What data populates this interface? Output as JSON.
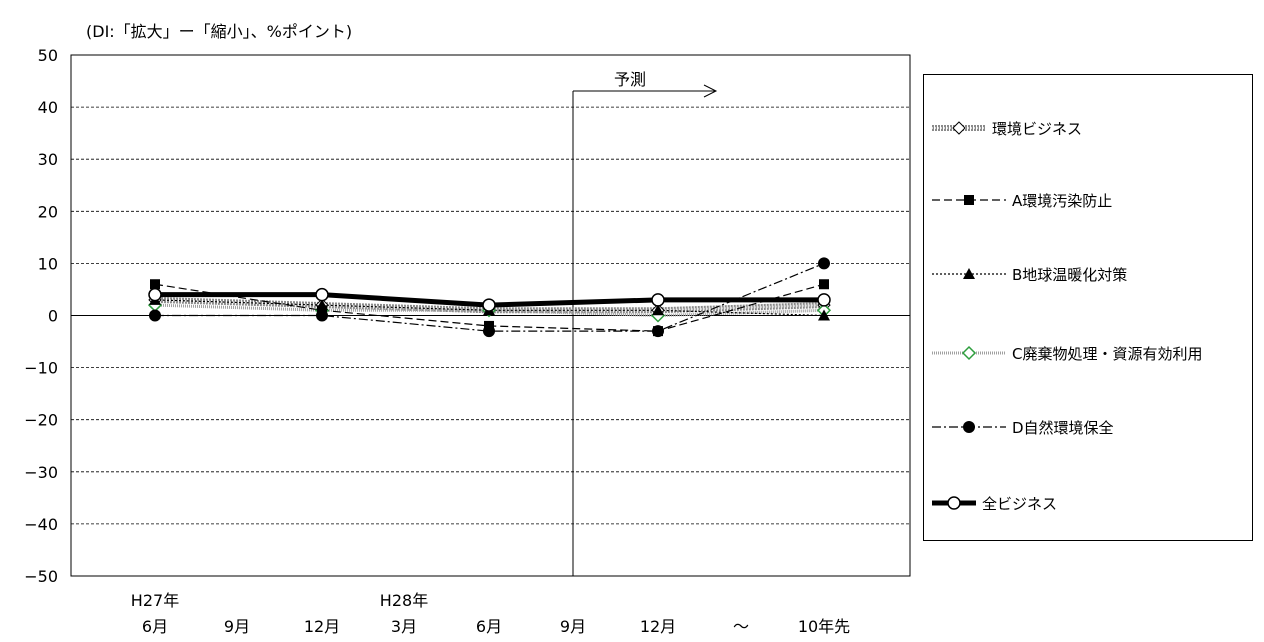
{
  "chart_data": {
    "type": "line",
    "unit_label": "(DI:「拡大」ー「縮小」、%ポイント)",
    "ylim": [
      -50,
      50
    ],
    "yticks": [
      50,
      40,
      30,
      20,
      10,
      0,
      -10,
      -20,
      -30,
      -40,
      -50
    ],
    "ytick_labels": [
      "50",
      "40",
      "30",
      "20",
      "10",
      "0",
      "−10",
      "−20",
      "−30",
      "−40",
      "−50"
    ],
    "x_months": [
      "6月",
      "9月",
      "12月",
      "3月",
      "6月",
      "9月",
      "12月",
      "〜",
      "10年先"
    ],
    "x_years": [
      {
        "label": "H27年",
        "index": 0
      },
      {
        "label": "H28年",
        "index": 3
      }
    ],
    "forecast_label": "予測",
    "forecast_start_index": 5,
    "grid": true,
    "legend_position": "right",
    "series": [
      {
        "name": "環境ビジネス",
        "style": "textured-thick",
        "marker": "diamond-open",
        "color": "#7f7f7f",
        "points": [
          [
            0,
            3
          ],
          [
            2,
            2
          ],
          [
            4,
            1
          ],
          [
            6,
            1
          ],
          [
            8,
            2
          ]
        ]
      },
      {
        "name": "A環境汚染防止",
        "style": "dashed",
        "marker": "square-filled",
        "color": "#000000",
        "points": [
          [
            0,
            6
          ],
          [
            2,
            1
          ],
          [
            4,
            -2
          ],
          [
            6,
            -3
          ],
          [
            8,
            6
          ]
        ]
      },
      {
        "name": "B地球温暖化対策",
        "style": "dotted",
        "marker": "triangle-filled",
        "color": "#000000",
        "points": [
          [
            0,
            3
          ],
          [
            2,
            2
          ],
          [
            4,
            1
          ],
          [
            6,
            1
          ],
          [
            8,
            0
          ]
        ]
      },
      {
        "name": "C廃棄物処理・資源有効利用",
        "style": "dotted-gray",
        "marker": "diamond-green",
        "color": "#2e9e3e",
        "points": [
          [
            0,
            2
          ],
          [
            2,
            1
          ],
          [
            4,
            1
          ],
          [
            6,
            0
          ],
          [
            8,
            1
          ]
        ]
      },
      {
        "name": "D自然環境保全",
        "style": "dash-dot",
        "marker": "circle-filled",
        "color": "#000000",
        "points": [
          [
            0,
            0
          ],
          [
            2,
            0
          ],
          [
            4,
            -3
          ],
          [
            6,
            -3
          ],
          [
            8,
            10
          ]
        ]
      },
      {
        "name": "全ビジネス",
        "style": "thick",
        "marker": "circle-open",
        "color": "#000000",
        "points": [
          [
            0,
            4
          ],
          [
            2,
            4
          ],
          [
            4,
            2
          ],
          [
            6,
            3
          ],
          [
            8,
            3
          ]
        ]
      }
    ]
  }
}
